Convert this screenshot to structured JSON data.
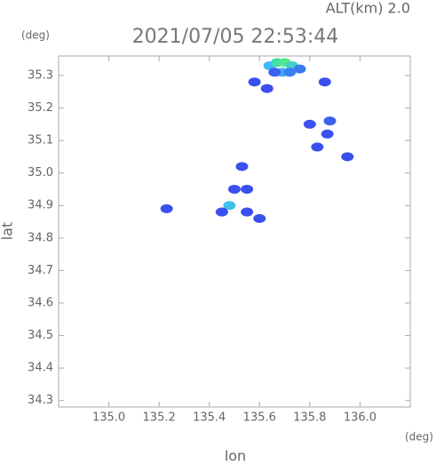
{
  "chart_data": {
    "type": "scatter",
    "title": "2021/07/05 22:53:44",
    "subtitle": "ALT(km) 2.0",
    "x_label": "lon",
    "y_label": "lat",
    "x_unit": "(deg)",
    "y_unit": "(deg)",
    "xlim": [
      134.8,
      136.2
    ],
    "ylim": [
      34.28,
      35.36
    ],
    "xticks": [
      {
        "value": 135.0,
        "label": "135.0"
      },
      135.2,
      135.4,
      135.6,
      135.8,
      {
        "value": 136.0,
        "label": "136.0"
      }
    ],
    "yticks": [
      34.3,
      34.4,
      34.5,
      34.6,
      34.7,
      34.8,
      34.9,
      {
        "value": 35.0,
        "label": "35.0"
      },
      35.1,
      35.2,
      35.3
    ],
    "x": [
      135.64,
      135.67,
      135.7,
      135.73,
      135.76,
      135.69,
      135.66,
      135.72,
      135.86,
      135.58,
      135.63,
      135.8,
      135.88,
      135.87,
      135.95,
      135.83,
      135.53,
      135.5,
      135.55,
      135.48,
      135.45,
      135.6,
      135.55,
      135.23
    ],
    "y": [
      35.33,
      35.34,
      35.34,
      35.33,
      35.32,
      35.31,
      35.31,
      35.31,
      35.28,
      35.28,
      35.26,
      35.15,
      35.16,
      35.12,
      35.05,
      35.08,
      35.02,
      34.95,
      34.95,
      34.9,
      34.88,
      34.86,
      34.88,
      34.89
    ],
    "colors": [
      "#3fb8f5",
      "#40e0a8",
      "#52e890",
      "#40d0c8",
      "#3a78f0",
      "#3fb0f0",
      "#3a60ee",
      "#3a80f0",
      "#3a50ee",
      "#3a50ee",
      "#3a50ee",
      "#3a50ee",
      "#3a60ee",
      "#3a50ee",
      "#3a50ee",
      "#3a50ee",
      "#3a50ee",
      "#3a50ee",
      "#3a50ee",
      "#40c0e8",
      "#3a50ee",
      "#3a50ee",
      "#3a50ee",
      "#3a50ee"
    ]
  }
}
